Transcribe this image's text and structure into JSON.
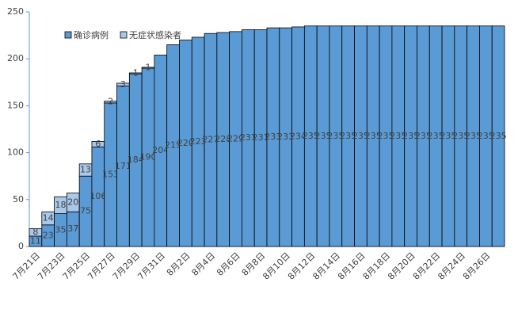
{
  "chart_data": {
    "type": "stacked-bar",
    "categories": [
      "7月21日",
      null,
      "7月23日",
      null,
      "7月25日",
      null,
      "7月27日",
      null,
      "7月29日",
      null,
      "7月31日",
      null,
      "8月2日",
      null,
      "8月4日",
      null,
      "8月6日",
      null,
      "8月8日",
      null,
      "8月10日",
      null,
      "8月12日",
      null,
      "8月14日",
      null,
      "8月16日",
      null,
      "8月18日",
      null,
      "8月20日",
      null,
      "8月22日",
      null,
      "8月24日",
      null,
      "8月26日",
      null
    ],
    "series": [
      {
        "name": "确诊病例",
        "color": "#5b9bd5",
        "values": [
          11,
          23,
          35,
          37,
          75,
          106,
          153,
          171,
          184,
          190,
          204,
          215,
          220,
          223,
          227,
          228,
          229,
          231,
          231,
          233,
          233,
          234,
          235,
          235,
          235,
          235,
          235,
          235,
          235,
          235,
          235,
          235,
          235,
          235,
          235,
          235,
          235,
          235
        ]
      },
      {
        "name": "无症状感染者",
        "color": "#a9c8ea",
        "values": [
          8,
          14,
          18,
          20,
          13,
          6,
          2,
          3,
          1,
          1,
          null,
          null,
          null,
          null,
          null,
          null,
          null,
          null,
          null,
          null,
          null,
          null,
          null,
          null,
          null,
          null,
          null,
          null,
          null,
          null,
          null,
          null,
          null,
          null,
          null,
          null,
          null,
          null
        ]
      }
    ],
    "ylim": [
      0,
      250
    ],
    "yticks": [
      0,
      50,
      100,
      150,
      200,
      250
    ],
    "legend": "top-left"
  }
}
